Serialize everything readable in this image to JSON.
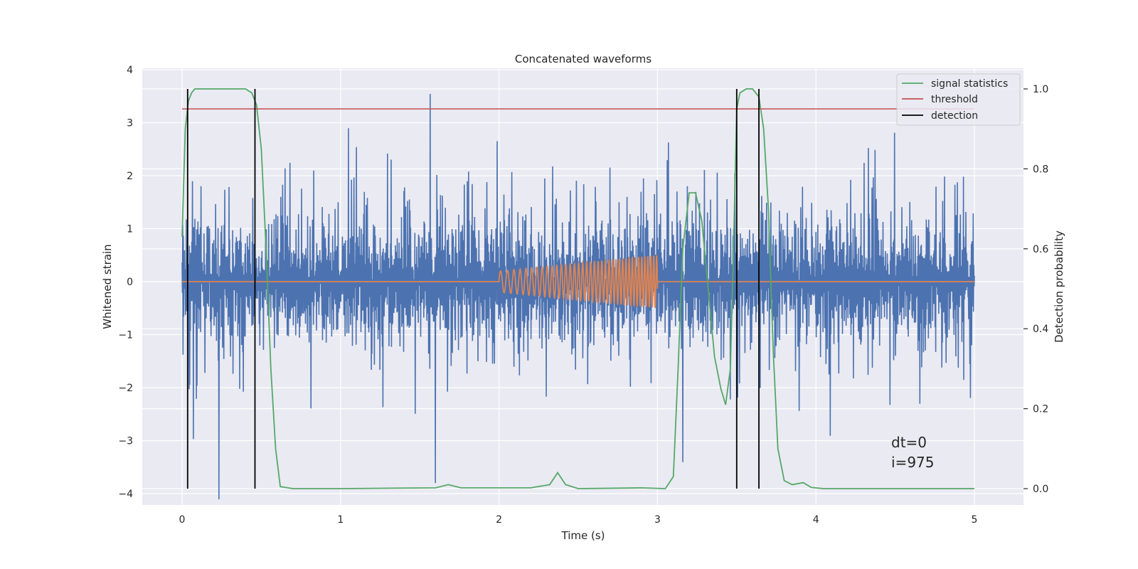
{
  "chart_data": {
    "type": "line",
    "title": "Concatenated waveforms",
    "xlabel": "Time (s)",
    "ylabel": "Whitened strain",
    "ylabel_right": "Detection probability",
    "xlim": [
      -0.25,
      5.35
    ],
    "ylim": [
      -4.3,
      4.0
    ],
    "ylim_right": [
      -0.05,
      1.05
    ],
    "grid": true,
    "legend_position": "top-right",
    "xticks": [
      "0",
      "1",
      "2",
      "3",
      "4",
      "5"
    ],
    "yticks": [
      "4",
      "3",
      "2",
      "1",
      "0",
      "−1",
      "−2",
      "−3",
      "−4"
    ],
    "yticks_right": [
      "0.0",
      "0.2",
      "0.4",
      "0.6",
      "0.8",
      "1.0"
    ],
    "annotations": [
      "dt=0",
      "i=975"
    ],
    "series": [
      {
        "name": "",
        "axis": "left",
        "color": "#4c72b0",
        "description_values": {
          "time_range": [
            0,
            5
          ],
          "envelope": 1.4,
          "max_spike": 3.6,
          "min_spike": -4.0,
          "noise_seed": 975
        }
      },
      {
        "name": "",
        "axis": "left",
        "color": "#dd8452",
        "x": [
          0,
          2,
          2,
          3,
          3,
          5
        ],
        "chirp": {
          "start": 2.0,
          "end": 3.0,
          "amp_start": 0.2,
          "amp_end": 0.5,
          "freq_start": 22,
          "freq_end": 55
        }
      },
      {
        "name": "signal statistics",
        "axis": "right",
        "color": "#55a868",
        "x": [
          0.0,
          0.02,
          0.04,
          0.06,
          0.08,
          0.1,
          0.15,
          0.3,
          0.4,
          0.44,
          0.47,
          0.5,
          0.53,
          0.56,
          0.59,
          0.62,
          0.7,
          1.0,
          1.3,
          1.6,
          1.68,
          1.76,
          2.2,
          2.32,
          2.37,
          2.42,
          2.5,
          2.9,
          3.05,
          3.1,
          3.13,
          3.16,
          3.2,
          3.24,
          3.28,
          3.32,
          3.36,
          3.4,
          3.43,
          3.46,
          3.48,
          3.5,
          3.52,
          3.56,
          3.6,
          3.64,
          3.67,
          3.7,
          3.73,
          3.76,
          3.8,
          3.85,
          3.92,
          3.97,
          4.05,
          4.5,
          5.0
        ],
        "values": [
          0.63,
          0.9,
          0.97,
          0.99,
          1.0,
          1.0,
          1.0,
          1.0,
          1.0,
          0.99,
          0.96,
          0.85,
          0.6,
          0.3,
          0.1,
          0.005,
          0.0,
          0.0,
          0.001,
          0.002,
          0.01,
          0.002,
          0.002,
          0.01,
          0.04,
          0.01,
          0.0,
          0.002,
          0.0,
          0.03,
          0.3,
          0.6,
          0.74,
          0.74,
          0.67,
          0.5,
          0.33,
          0.25,
          0.21,
          0.3,
          0.6,
          0.95,
          0.99,
          1.0,
          1.0,
          0.98,
          0.9,
          0.7,
          0.35,
          0.1,
          0.02,
          0.01,
          0.015,
          0.003,
          0.0,
          0.0,
          0.0
        ]
      },
      {
        "name": "threshold",
        "axis": "right",
        "color": "#c44e52",
        "x": [
          0,
          5
        ],
        "values": [
          0.95,
          0.95
        ]
      },
      {
        "name": "detection",
        "axis": "right",
        "color": "#000000",
        "type": "vlines",
        "x": [
          0.035,
          0.46,
          3.5,
          3.64
        ],
        "range": [
          0.0,
          1.0
        ]
      }
    ]
  }
}
